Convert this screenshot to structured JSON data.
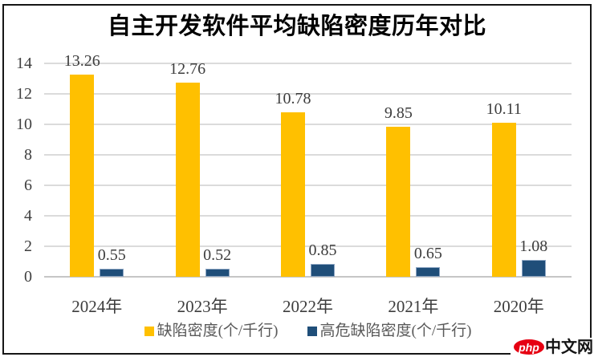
{
  "chart_data": {
    "type": "bar",
    "title": "自主开发软件平均缺陷密度历年对比",
    "categories": [
      "2024年",
      "2023年",
      "2022年",
      "2021年",
      "2020年"
    ],
    "series": [
      {
        "name": "缺陷密度(个/千行)",
        "color": "#FFC000",
        "values": [
          13.26,
          12.76,
          10.78,
          9.85,
          10.11
        ]
      },
      {
        "name": "高危缺陷密度(个/千行)",
        "color": "#1F4E79",
        "border_color": "#8CA5C3",
        "values": [
          0.55,
          0.52,
          0.85,
          0.65,
          1.08
        ]
      }
    ],
    "xlabel": "",
    "ylabel": "",
    "ylim": [
      0,
      14
    ],
    "yticks": [
      0,
      2,
      4,
      6,
      8,
      10,
      12,
      14
    ],
    "grid": true,
    "gridline_color": "#DBDBDB",
    "baseline_color": "#C6C6C6",
    "value_labels": true,
    "legend_position": "bottom"
  },
  "watermark": {
    "logo_text": "php",
    "site_text": "中文网",
    "logo_color": "#E60012"
  }
}
